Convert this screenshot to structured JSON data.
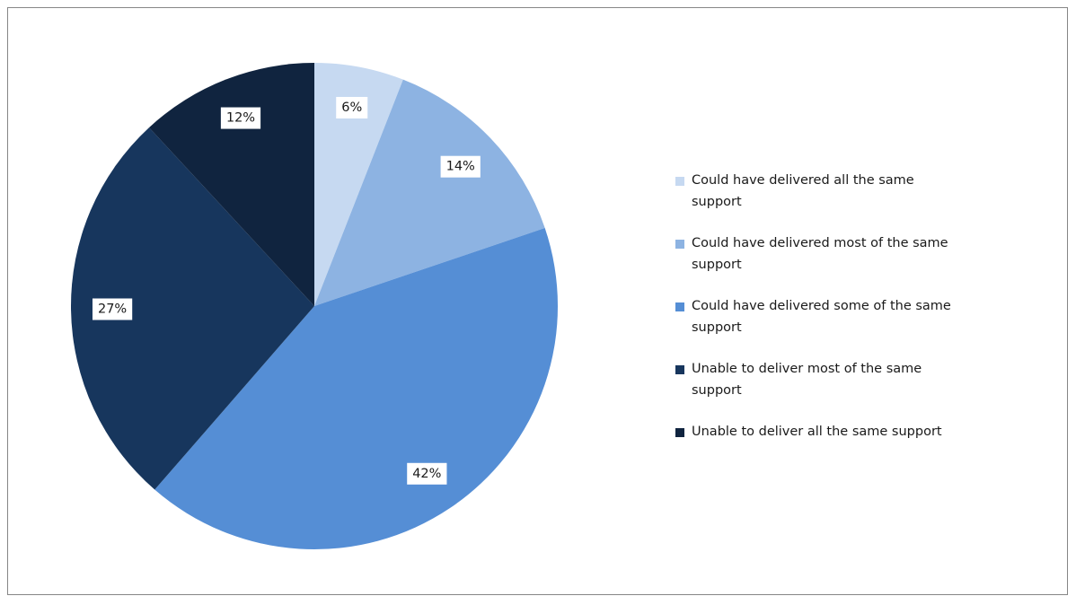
{
  "chart_data": {
    "type": "pie",
    "title": "",
    "legend_position": "right",
    "start_angle": "12 o'clock, clockwise",
    "slices": [
      {
        "label": "Could have delivered all the same support",
        "value": 6,
        "display": "6%",
        "color": "#c6d9f1"
      },
      {
        "label": "Could have delivered most of the same support",
        "value": 14,
        "display": "14%",
        "color": "#8db3e2"
      },
      {
        "label": "Could have delivered some of the same support",
        "value": 42,
        "display": "42%",
        "color": "#558ed5"
      },
      {
        "label": "Unable to deliver most of the same support",
        "value": 27,
        "display": "27%",
        "color": "#17365d"
      },
      {
        "label": "Unable to deliver all the same support",
        "value": 12,
        "display": "12%",
        "color": "#10243f"
      }
    ]
  }
}
